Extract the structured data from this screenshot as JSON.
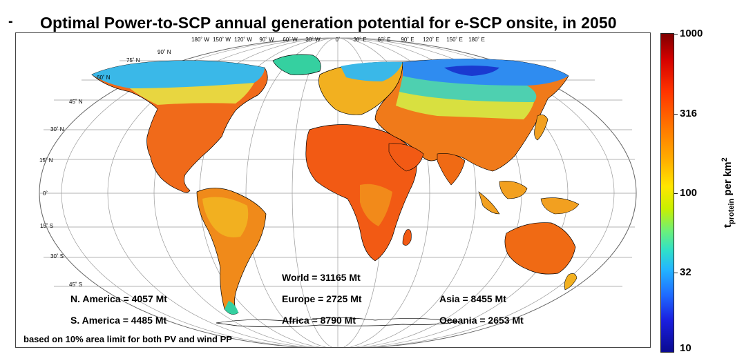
{
  "title": "Optimal Power-to-SCP annual generation potential for e-SCP onsite, in 2050",
  "dash": "-",
  "map": {
    "lon_labels": [
      "180˚ W",
      "150˚ W",
      "120˚ W",
      "90˚ W",
      "60˚ W",
      "30˚ W",
      "0˚",
      "30˚ E",
      "60˚ E",
      "90˚ E",
      "120˚ E",
      "150˚ E",
      "180˚ E"
    ],
    "lat_labels": [
      "90˚ N",
      "75˚ N",
      "60˚ N",
      "45˚ N",
      "30˚ N",
      "15˚ N",
      "0˚",
      "15˚ S",
      "30˚ S",
      "45˚ S"
    ]
  },
  "stats": {
    "world": "World = 31165 Mt",
    "n_america": "N. America = 4057 Mt",
    "europe": "Europe = 2725 Mt",
    "asia": "Asia = 8455 Mt",
    "s_america": "S. America = 4485 Mt",
    "africa": "Africa = 8790 Mt",
    "oceania": "Oceania = 2653 Mt"
  },
  "footnote": "based on 10% area limit for both PV and wind PP",
  "colorbar": {
    "ticks": [
      "1000",
      "316",
      "100",
      "32",
      "10"
    ],
    "unit_main": "t",
    "unit_sub": "protein",
    "unit_rest": " per km",
    "unit_sup": "2",
    "scale": "log",
    "colormap": [
      "#7f0000",
      "#ff3300",
      "#ffb000",
      "#ffe600",
      "#6cf07a",
      "#23b6ff",
      "#1a1fe0",
      "#0a0a90"
    ]
  }
}
